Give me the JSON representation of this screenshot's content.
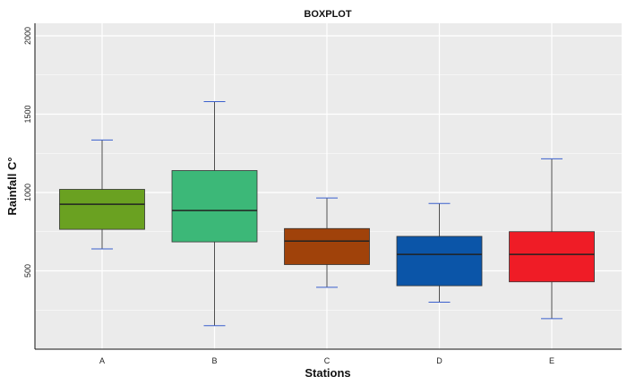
{
  "chart_data": {
    "type": "boxplot",
    "title": "BOXPLOT",
    "xlabel": "Stations",
    "ylabel": "Rainfall C°",
    "categories": [
      "A",
      "B",
      "C",
      "D",
      "E"
    ],
    "boxes": [
      {
        "label": "A",
        "whisker_low": 640,
        "q1": 765,
        "median": 925,
        "q3": 1020,
        "whisker_high": 1335,
        "color": "#6aa121"
      },
      {
        "label": "B",
        "whisker_low": 150,
        "q1": 685,
        "median": 885,
        "q3": 1140,
        "whisker_high": 1580,
        "color": "#3cb878"
      },
      {
        "label": "C",
        "whisker_low": 395,
        "q1": 540,
        "median": 690,
        "q3": 770,
        "whisker_high": 965,
        "color": "#a0420a"
      },
      {
        "label": "D",
        "whisker_low": 300,
        "q1": 405,
        "median": 605,
        "q3": 720,
        "whisker_high": 930,
        "color": "#0b55a8"
      },
      {
        "label": "E",
        "whisker_low": 195,
        "q1": 430,
        "median": 605,
        "q3": 750,
        "whisker_high": 1215,
        "color": "#ef1c26"
      }
    ],
    "yticks": [
      500,
      1000,
      1500,
      2000
    ],
    "ytick_labels": [
      "500",
      "1000",
      "1500",
      "2000"
    ],
    "ylim": [
      0,
      2080
    ],
    "grid": true,
    "legend": "none",
    "colors": {
      "panel": "#ebebeb",
      "grid": "#ffffff",
      "cap": "#3a5fcd",
      "median": "#222222"
    }
  }
}
